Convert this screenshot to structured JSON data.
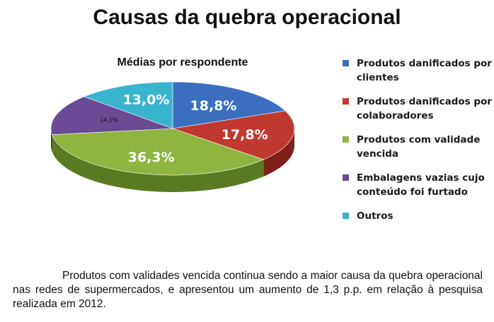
{
  "title": "Causas da quebra operacional",
  "chart_data": {
    "type": "pie",
    "subtitle": "Médias por respondente",
    "slices": [
      {
        "label": "Produtos danificados por clientes",
        "value": 18.8,
        "display": "18,8%",
        "color": "#3a6fbf",
        "side": "#2a528f"
      },
      {
        "label": "Produtos danificados por colaboradores",
        "value": 17.8,
        "display": "17,8%",
        "color": "#c0392f",
        "side": "#7e1f18"
      },
      {
        "label": "Produtos com validade vencida",
        "value": 36.3,
        "display": "36,3%",
        "color": "#8fb43f",
        "side": "#5a7a22"
      },
      {
        "label": "Embalagens vazias cujo conteúdo foi furtado",
        "value": 14.1,
        "display": "14,1%",
        "color": "#6a4a94",
        "side": "#47306a"
      },
      {
        "label": "Outros",
        "value": 13.0,
        "display": "13,0%",
        "color": "#3ab3cf",
        "side": "#237f96"
      }
    ],
    "legend_position": "right"
  },
  "caption": "Produtos com validades vencida continua sendo a maior causa da quebra operacional nas redes de supermercados, e apresentou um aumento de 1,3 p.p. em relação à pesquisa realizada em 2012."
}
